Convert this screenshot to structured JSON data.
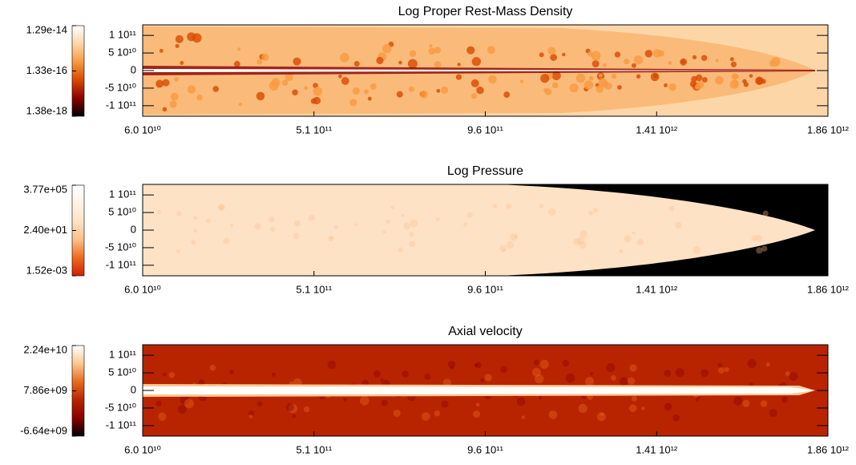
{
  "chart_data": [
    {
      "type": "heatmap",
      "title": "Log Proper Rest-Mass Density",
      "xlim": [
        60000000000.0,
        1860000000000.0
      ],
      "xticks": [
        {
          "value": 60000000000.0,
          "label": "6.0 10¹⁰"
        },
        {
          "value": 510000000000.0,
          "label": "5.1 10¹¹"
        },
        {
          "value": 960000000000.0,
          "label": "9.6 10¹¹"
        },
        {
          "value": 1410000000000.0,
          "label": "1.41 10¹²"
        },
        {
          "value": 1860000000000.0,
          "label": "1.86 10¹²"
        }
      ],
      "ylim": [
        -130000000000.0,
        130000000000.0
      ],
      "yticks": [
        {
          "value": 100000000000.0,
          "label": "1 10¹¹"
        },
        {
          "value": 50000000000.0,
          "label": "5 10¹⁰"
        },
        0,
        {
          "value": -50000000000.0,
          "label": "-5 10¹⁰"
        },
        {
          "value": -100000000000.0,
          "label": "-1 10¹¹"
        }
      ],
      "colorbar": {
        "scale": "log",
        "lim": [
          1.38e-18,
          1.29e-14
        ],
        "ticks": [
          {
            "value": 1.29e-14,
            "label": "1.29e-14"
          },
          {
            "value": 1.33e-16,
            "label": "1.33e-16"
          },
          {
            "value": 1.38e-18,
            "label": "1.38e-18"
          }
        ]
      },
      "colormap": [
        "#000000",
        "#8a0000",
        "#d84a00",
        "#f79a40",
        "#fdd6a8",
        "#ffffff"
      ]
    },
    {
      "type": "heatmap",
      "title": "Log Pressure",
      "xlim": [
        60000000000.0,
        1860000000000.0
      ],
      "xticks": [
        {
          "value": 60000000000.0,
          "label": "6.0 10¹⁰"
        },
        {
          "value": 510000000000.0,
          "label": "5.1 10¹¹"
        },
        {
          "value": 960000000000.0,
          "label": "9.6 10¹¹"
        },
        {
          "value": 1410000000000.0,
          "label": "1.41 10¹²"
        },
        {
          "value": 1860000000000.0,
          "label": "1.86 10¹²"
        }
      ],
      "ylim": [
        -130000000000.0,
        130000000000.0
      ],
      "yticks": [
        {
          "value": 100000000000.0,
          "label": "1 10¹¹"
        },
        {
          "value": 50000000000.0,
          "label": "5 10¹⁰"
        },
        0,
        {
          "value": -50000000000.0,
          "label": "-5 10¹⁰"
        },
        {
          "value": -100000000000.0,
          "label": "-1 10¹¹"
        }
      ],
      "colorbar": {
        "scale": "log",
        "lim": [
          0.00152,
          377000.0
        ],
        "ticks": [
          {
            "value": 377000.0,
            "label": "3.77e+05"
          },
          {
            "value": 24.0,
            "label": "2.40e+01"
          },
          {
            "value": 0.00152,
            "label": "1.52e-03"
          }
        ]
      },
      "colormap": [
        "#d02000",
        "#f06a20",
        "#fbc08a",
        "#fee2c6",
        "#fff3e6",
        "#ffffff"
      ]
    },
    {
      "type": "heatmap",
      "title": "Axial velocity",
      "xlim": [
        60000000000.0,
        1860000000000.0
      ],
      "xticks": [
        {
          "value": 60000000000.0,
          "label": "6.0 10¹⁰"
        },
        {
          "value": 510000000000.0,
          "label": "5.1 10¹¹"
        },
        {
          "value": 960000000000.0,
          "label": "9.6 10¹¹"
        },
        {
          "value": 1410000000000.0,
          "label": "1.41 10¹²"
        },
        {
          "value": 1860000000000.0,
          "label": "1.86 10¹²"
        }
      ],
      "ylim": [
        -130000000000.0,
        130000000000.0
      ],
      "yticks": [
        {
          "value": 100000000000.0,
          "label": "1 10¹¹"
        },
        {
          "value": 50000000000.0,
          "label": "5 10¹⁰"
        },
        0,
        {
          "value": -50000000000.0,
          "label": "-5 10¹⁰"
        },
        {
          "value": -100000000000.0,
          "label": "-1 10¹¹"
        }
      ],
      "colorbar": {
        "scale": "linear",
        "lim": [
          -6640000000.0,
          22400000000.0
        ],
        "ticks": [
          {
            "value": 22400000000.0,
            "label": "2.24e+10"
          },
          {
            "value": 7860000000.0,
            "label": "7.86e+09"
          },
          {
            "value": -6640000000.0,
            "label": "-6.64e+09"
          }
        ]
      },
      "colormap": [
        "#000000",
        "#8a0000",
        "#b82400",
        "#e86a20",
        "#fcc890",
        "#ffffff"
      ]
    }
  ]
}
